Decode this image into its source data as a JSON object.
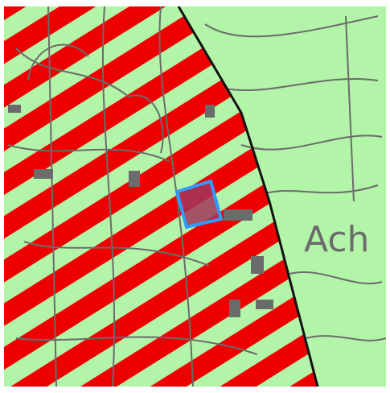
{
  "map": {
    "labels": [
      "Ach"
    ]
  }
}
